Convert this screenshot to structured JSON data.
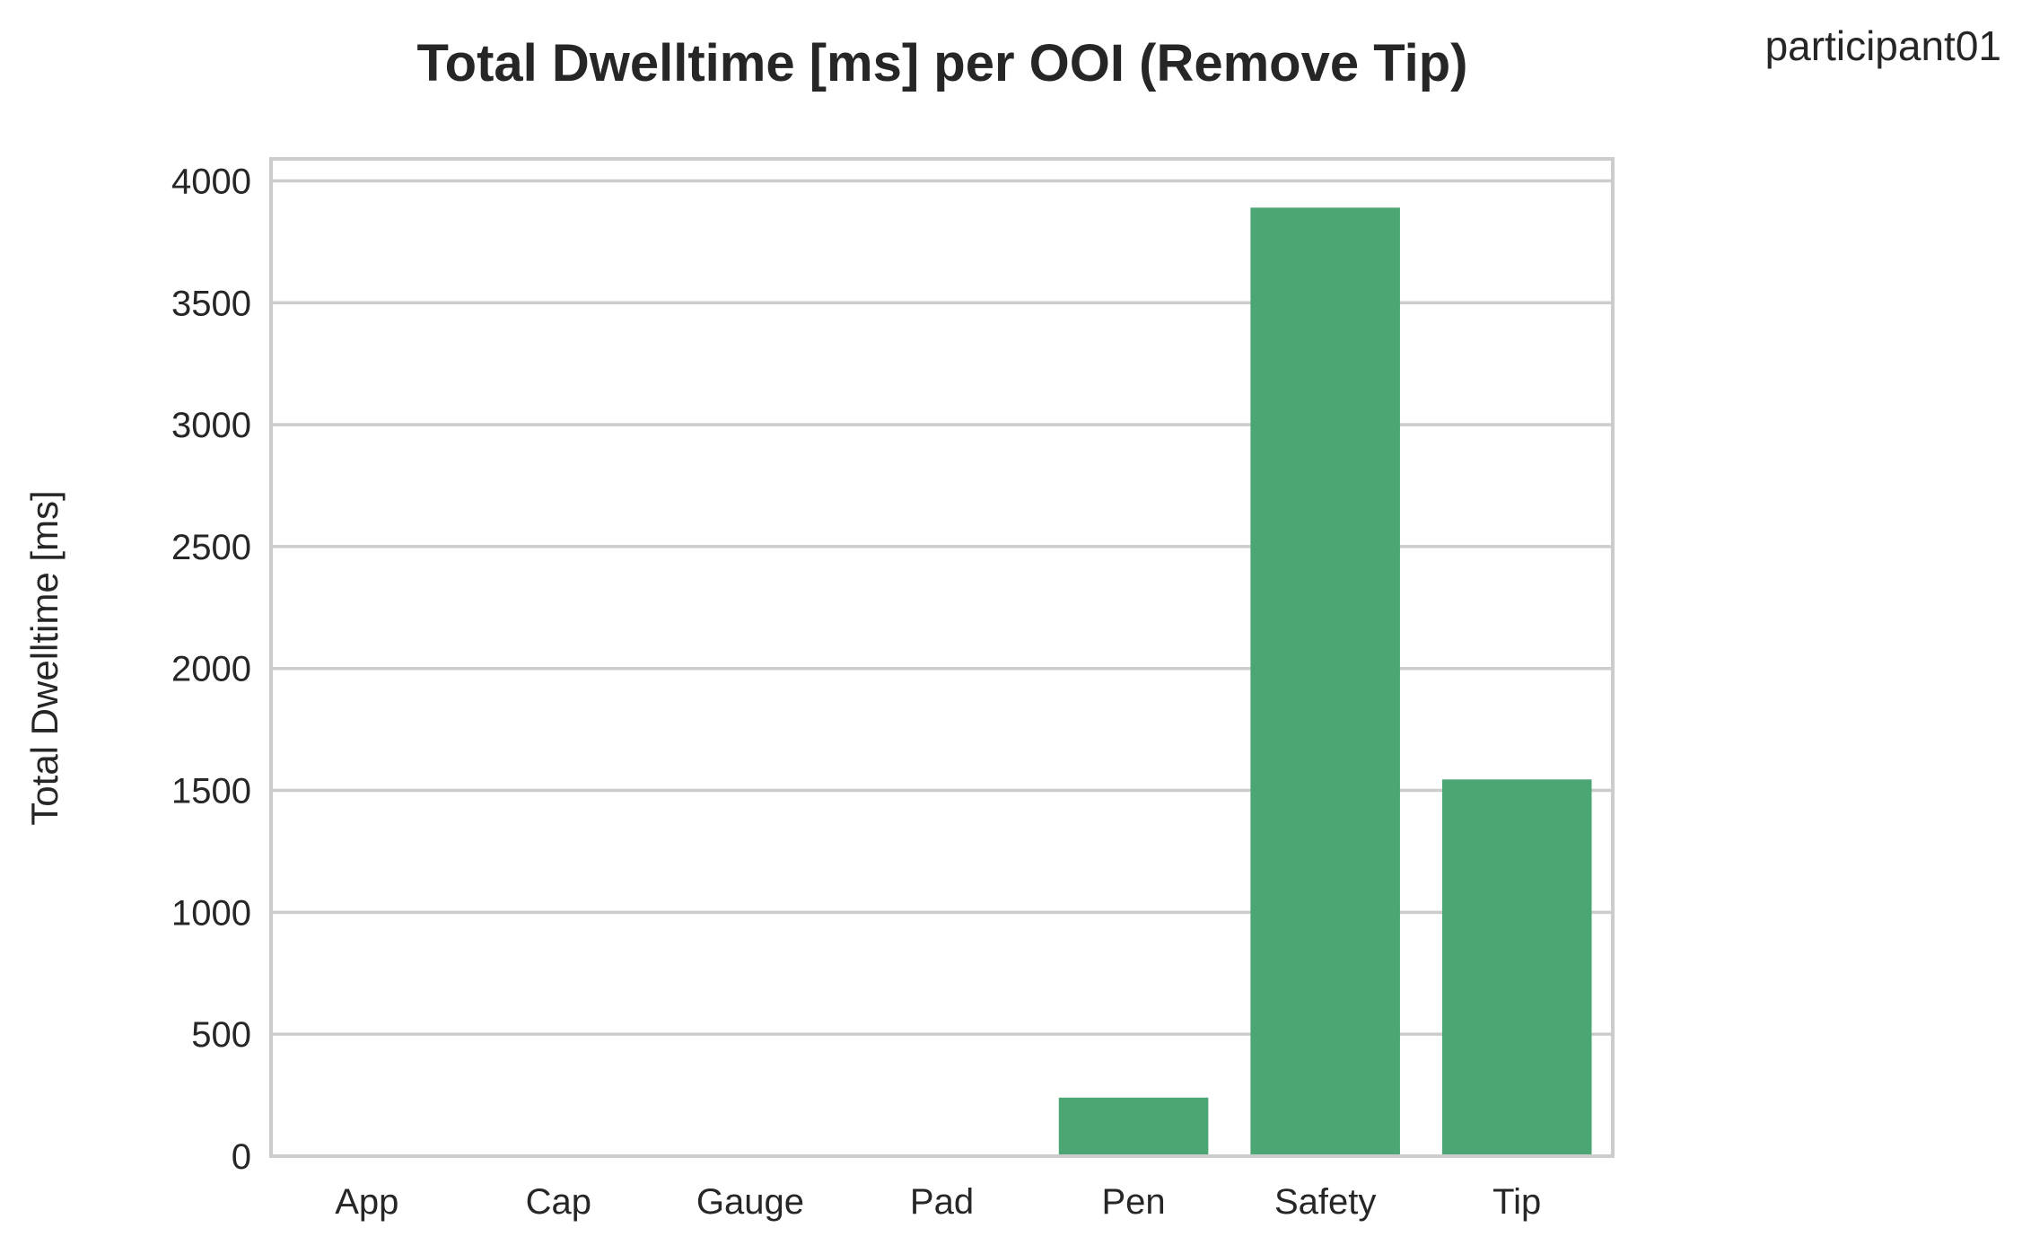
{
  "chart_data": {
    "type": "bar",
    "title": "Total Dwelltime [ms] per OOI (Remove Tip)",
    "corner_label": "participant01",
    "xlabel": "",
    "ylabel": "Total Dwelltime [ms]",
    "categories": [
      "App",
      "Cap",
      "Gauge",
      "Pad",
      "Pen",
      "Safety",
      "Tip"
    ],
    "values": [
      0,
      0,
      0,
      0,
      240,
      3890,
      1545
    ],
    "ylim": [
      0,
      4090
    ],
    "yticks": [
      0,
      500,
      1000,
      1500,
      2000,
      2500,
      3000,
      3500,
      4000
    ],
    "grid": "horizontal",
    "bar_color": "#4ca674",
    "grid_color": "#cccccc",
    "frame_color": "#cccccc"
  }
}
